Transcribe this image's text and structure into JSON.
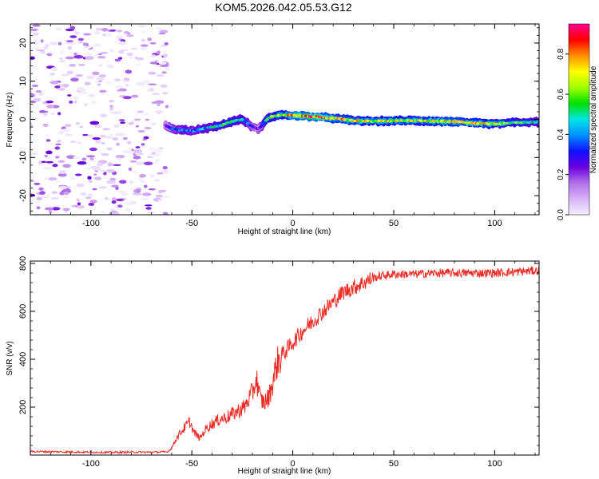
{
  "title": "KOM5.2026.042.05.53.G12",
  "chart_data": [
    {
      "type": "heatmap",
      "name": "spectrogram",
      "xlabel": "Height of straight line (km)",
      "ylabel": "Frequency (Hz)",
      "xlim": [
        -130,
        122
      ],
      "ylim": [
        -25,
        25
      ],
      "xticks": [
        -100,
        -50,
        0,
        50,
        100
      ],
      "yticks": [
        -20,
        -10,
        0,
        10,
        20
      ],
      "colorbar": {
        "label": "Normalized spectral amplitude",
        "range": [
          0,
          0.95
        ],
        "ticks": [
          0.0,
          0.2,
          0.4,
          0.6,
          0.8
        ],
        "colors": [
          "#f4f0ff",
          "#d6b4f5",
          "#b070e8",
          "#6a00e0",
          "#1010ff",
          "#0090ff",
          "#00e6e6",
          "#00e000",
          "#a0ff00",
          "#ffff00",
          "#ff9000",
          "#ff0000",
          "#ff0090"
        ]
      },
      "signal_track": {
        "x": [
          -63,
          -60,
          -55,
          -50,
          -45,
          -40,
          -35,
          -30,
          -25,
          -20,
          -17,
          -15,
          -12,
          -8,
          -5,
          0,
          10,
          20,
          30,
          40,
          50,
          60,
          70,
          80,
          90,
          100,
          110,
          122
        ],
        "freq": [
          -1.5,
          -2.5,
          -2.8,
          -3.0,
          -2.5,
          -2.0,
          -1.5,
          -0.5,
          0.0,
          -2.0,
          -2.5,
          -1.5,
          0.5,
          1.0,
          1.2,
          1.0,
          0.7,
          0.3,
          -0.3,
          -0.5,
          -0.4,
          -0.3,
          -0.5,
          -0.6,
          -1.0,
          -1.2,
          -0.8,
          -0.7
        ],
        "amplitude": [
          0.2,
          0.35,
          0.45,
          0.4,
          0.45,
          0.5,
          0.55,
          0.55,
          0.5,
          0.3,
          0.25,
          0.4,
          0.6,
          0.65,
          0.7,
          0.85,
          0.9,
          0.8,
          0.75,
          0.7,
          0.75,
          0.7,
          0.75,
          0.8,
          0.75,
          0.7,
          0.6,
          0.5
        ]
      },
      "noise_region": {
        "x_range": [
          -130,
          -62
        ],
        "amplitude": [
          0.0,
          0.25
        ]
      }
    },
    {
      "type": "line",
      "name": "snr",
      "xlabel": "Height of straight line (km)",
      "ylabel": "SNR (v/v)",
      "xlim": [
        -130,
        122
      ],
      "ylim": [
        0,
        810
      ],
      "xticks": [
        -100,
        -50,
        0,
        50,
        100
      ],
      "yticks": [
        200,
        400,
        600,
        800
      ],
      "color": "#ee2a24",
      "series": [
        {
          "name": "SNR",
          "x": [
            -130,
            -120,
            -110,
            -100,
            -90,
            -80,
            -70,
            -62,
            -60,
            -57,
            -54,
            -51,
            -49,
            -46,
            -43,
            -40,
            -36,
            -32,
            -28,
            -24,
            -20,
            -18,
            -16,
            -14,
            -12,
            -10,
            -8,
            -5,
            -2,
            0,
            5,
            10,
            15,
            20,
            25,
            30,
            35,
            40,
            45,
            50,
            60,
            70,
            80,
            90,
            100,
            110,
            122
          ],
          "y": [
            15,
            14,
            13,
            12,
            11,
            12,
            12,
            13,
            30,
            80,
            110,
            140,
            95,
            70,
            110,
            130,
            150,
            160,
            180,
            200,
            260,
            320,
            230,
            220,
            240,
            300,
            380,
            420,
            450,
            470,
            520,
            560,
            600,
            640,
            680,
            700,
            720,
            740,
            750,
            755,
            755,
            760,
            760,
            760,
            760,
            765,
            770
          ]
        }
      ]
    }
  ]
}
